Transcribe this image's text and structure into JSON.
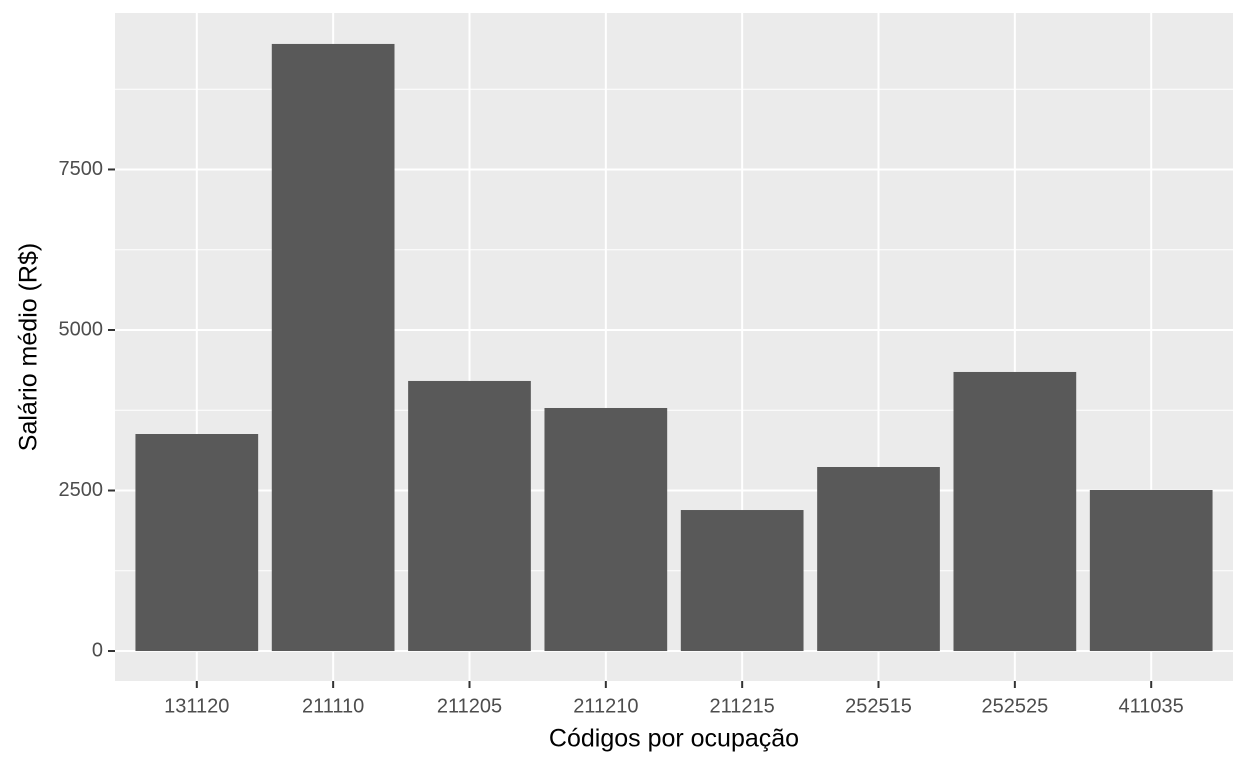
{
  "chart_data": {
    "type": "bar",
    "x_label": "Códigos por ocupação",
    "y_label": "Salário médio (R$)",
    "categories": [
      "131120",
      "211110",
      "211205",
      "211210",
      "211215",
      "252515",
      "252525",
      "411035"
    ],
    "values": [
      3380,
      9455,
      4206,
      3785,
      2196,
      2866,
      4346,
      2508
    ],
    "color": "#595959",
    "ylim": [
      -467,
      9937
    ],
    "yticks": [
      0,
      2500,
      5000,
      7500
    ],
    "grid": true,
    "minor_grid": true
  }
}
